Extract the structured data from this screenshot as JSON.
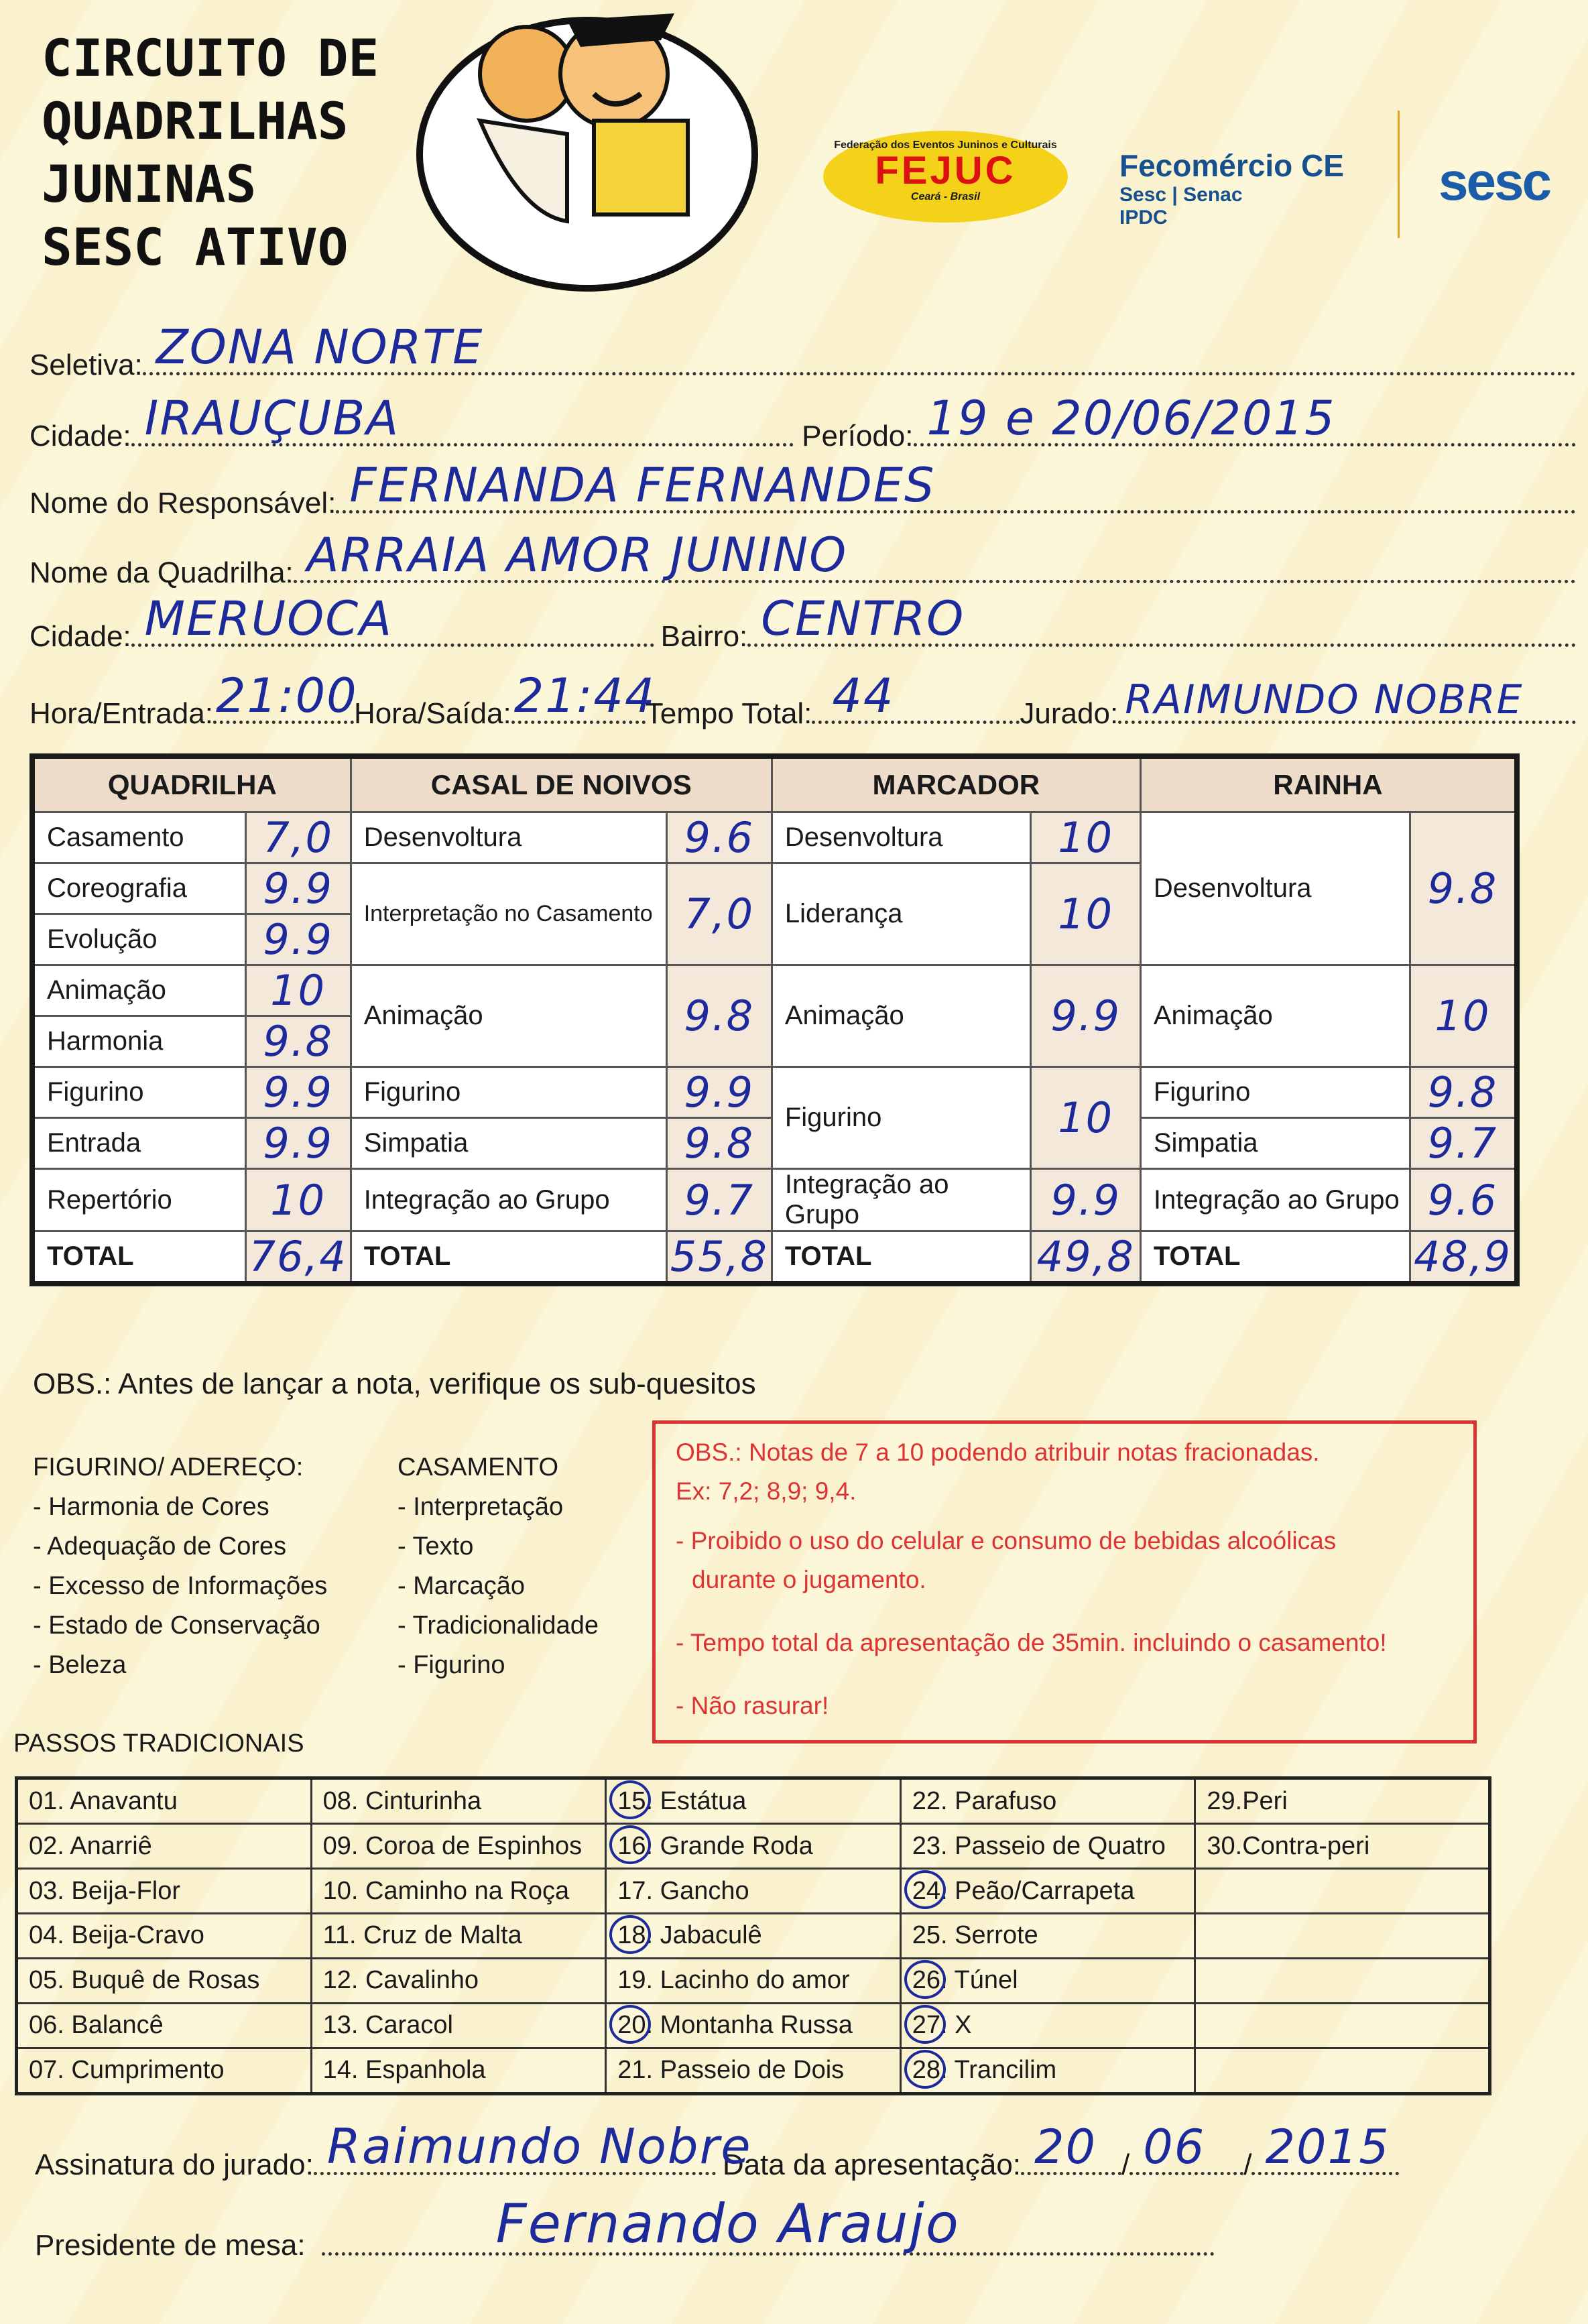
{
  "header": {
    "title_lines": [
      "CIRCUITO DE",
      "QUADRILHAS",
      "JUNINAS",
      "SESC ATIVO"
    ],
    "logos": {
      "fejuc": {
        "top": "Federação dos Eventos Juninos e Culturais",
        "name": "FEJUC",
        "sub": "Ceará - Brasil"
      },
      "fecomercio": {
        "name": "Fecomércio CE",
        "line2": "Sesc | Senac",
        "line3": "IPDC"
      },
      "sesc": "sesc"
    }
  },
  "form": {
    "seletiva": {
      "label": "Seletiva:",
      "value": "ZONA NORTE"
    },
    "cidade1": {
      "label": "Cidade:",
      "value": "IRAUÇUBA"
    },
    "periodo": {
      "label": "Período:",
      "value": "19 e 20/06/2015"
    },
    "responsavel": {
      "label": "Nome do Responsável:",
      "value": "FERNANDA FERNANDES"
    },
    "quadrilha": {
      "label": "Nome da Quadrilha:",
      "value": "ARRAIA AMOR JUNINO"
    },
    "cidade2": {
      "label": "Cidade:",
      "value": "MERUOCA"
    },
    "bairro": {
      "label": "Bairro:",
      "value": "CENTRO"
    },
    "hora_entrada": {
      "label": "Hora/Entrada:",
      "value": "21:00"
    },
    "hora_saida": {
      "label": "Hora/Saída:",
      "value": "21:44"
    },
    "tempo_total": {
      "label": "Tempo Total:",
      "value": "44"
    },
    "jurado": {
      "label": "Jurado:",
      "value": "RAIMUNDO NOBRE"
    }
  },
  "scores": {
    "headers": [
      "QUADRILHA",
      "CASAL DE NOIVOS",
      "MARCADOR",
      "RAINHA"
    ],
    "quadrilha": [
      {
        "label": "Casamento",
        "score": "7,0"
      },
      {
        "label": "Coreografia",
        "score": "9.9"
      },
      {
        "label": "Evolução",
        "score": "9.9"
      },
      {
        "label": "Animação",
        "score": "10"
      },
      {
        "label": "Harmonia",
        "score": "9.8"
      },
      {
        "label": "Figurino",
        "score": "9.9"
      },
      {
        "label": "Entrada",
        "score": "9.9"
      },
      {
        "label": "Repertório",
        "score": "10"
      }
    ],
    "casal": [
      {
        "label": "Desenvoltura",
        "score": "9.6"
      },
      {
        "label": "Interpretação no Casamento",
        "score": "7,0"
      },
      {
        "label": "Animação",
        "score": "9.8"
      },
      {
        "label": "Figurino",
        "score": "9.9"
      },
      {
        "label": "Simpatia",
        "score": "9.8"
      },
      {
        "label": "Integração ao Grupo",
        "score": "9.7"
      }
    ],
    "marcador": [
      {
        "label": "Desenvoltura",
        "score": "10"
      },
      {
        "label": "Liderança",
        "score": "10"
      },
      {
        "label": "Animação",
        "score": "9.9"
      },
      {
        "label": "Figurino",
        "score": "10"
      },
      {
        "label": "Integração ao Grupo",
        "score": "9.9"
      }
    ],
    "rainha": [
      {
        "label": "Desenvoltura",
        "score": "9.8"
      },
      {
        "label": "Animação",
        "score": "10"
      },
      {
        "label": "Figurino",
        "score": "9.8"
      },
      {
        "label": "Simpatia",
        "score": "9.7"
      },
      {
        "label": "Integração ao Grupo",
        "score": "9.6"
      }
    ],
    "total_label": "TOTAL",
    "totals": {
      "quadrilha": "76,4",
      "casal": "55,8",
      "marcador": "49,8",
      "rainha": "48,9"
    }
  },
  "obs": {
    "title": "OBS.: Antes de lançar a nota, verifique os sub-quesitos",
    "figurino": {
      "heading": "FIGURINO/ ADEREÇO:",
      "items": [
        "- Harmonia de Cores",
        "- Adequação de  Cores",
        "- Excesso de Informações",
        "- Estado de Conservação",
        "- Beleza"
      ]
    },
    "casamento": {
      "heading": "CASAMENTO",
      "items": [
        "- Interpretação",
        "- Texto",
        "- Marcação",
        "- Tradicionalidade",
        "- Figurino"
      ]
    },
    "rules": [
      "OBS.: Notas de 7 a 10 podendo atribuir  notas fracionadas.",
      "Ex: 7,2; 8,9; 9,4.",
      "- Proibido o uso do celular e consumo de bebidas alcoólicas",
      "  durante o jugamento.",
      "- Tempo total da apresentação de 35min. incluindo o casamento!",
      "- Não rasurar!"
    ],
    "accent_color": "#d33333"
  },
  "passos": {
    "title": "PASSOS TRADICIONAIS",
    "rows": [
      [
        "01. Anavantu",
        "08. Cinturinha",
        "15. Estátua",
        "22. Parafuso",
        "29.Peri"
      ],
      [
        "02. Anarriê",
        "09. Coroa de Espinhos",
        "16. Grande Roda",
        "23. Passeio de Quatro",
        "30.Contra-peri"
      ],
      [
        "03. Beija-Flor",
        "10. Caminho na Roça",
        "17. Gancho",
        "24. Peão/Carrapeta",
        ""
      ],
      [
        "04. Beija-Cravo",
        "11. Cruz de Malta",
        "18. Jabaculê",
        "25. Serrote",
        ""
      ],
      [
        "05. Buquê de Rosas",
        "12. Cavalinho",
        "19. Lacinho do amor",
        "26. Túnel",
        ""
      ],
      [
        "06. Balancê",
        "13. Caracol",
        "20. Montanha Russa",
        "27. X",
        ""
      ],
      [
        "07. Cumprimento",
        "14. Espanhola",
        "21. Passeio de Dois",
        "28. Trancilim",
        ""
      ]
    ],
    "circled": [
      "15",
      "16",
      "18",
      "20",
      "24",
      "26",
      "27",
      "28"
    ]
  },
  "signatures": {
    "jurado_label": "Assinatura do jurado:",
    "jurado_value": "Raimundo Nobre",
    "data_label": "Data da apresentação:",
    "data_day": "20",
    "data_month": "06",
    "data_year": "2015",
    "presidente_label": "Presidente de mesa:",
    "presidente_value": "Fernando Araujo"
  },
  "ink_color": "#1c2a9c"
}
